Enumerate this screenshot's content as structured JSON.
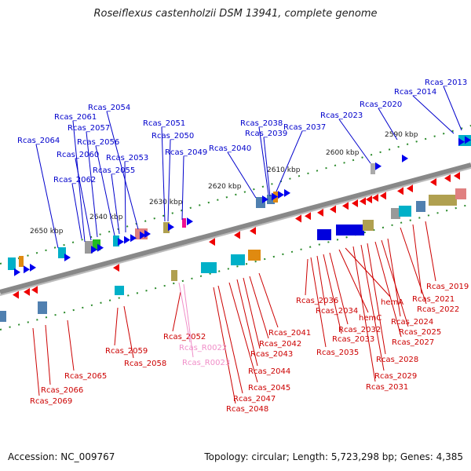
{
  "title": "Roseiflexus castenholzii DSM 13941, complete genome",
  "accession": "Accession: NC_009767",
  "topology": "Topology: circular; Length: 5,723,298 bp; Genes: 4,385",
  "colors": {
    "forward_label": "#0000cc",
    "reverse_label": "#cc0000",
    "rna_label": "#f08ec8",
    "forward_arrow": "#0000ee",
    "reverse_arrow": "#ee0000",
    "backbone": "#888888",
    "tick": "#2a8a2a"
  },
  "kbp_labels": [
    "2650 kbp",
    "2640 kbp",
    "2630 kbp",
    "2620 kbp",
    "2610 kbp",
    "2600 kbp",
    "2590 kbp"
  ],
  "forward_genes": [
    "Rcas_2064",
    "Rcas_2061",
    "Rcas_2060",
    "Rcas_2062",
    "Rcas_2057",
    "Rcas_2056",
    "Rcas_2055",
    "Rcas_2054",
    "Rcas_2053",
    "Rcas_2051",
    "Rcas_2050",
    "Rcas_2049",
    "Rcas_2040",
    "Rcas_2038",
    "Rcas_2039",
    "Rcas_2037",
    "Rcas_2023",
    "Rcas_2020",
    "Rcas_2014",
    "Rcas_2013"
  ],
  "reverse_genes": [
    "Rcas_2069",
    "Rcas_2066",
    "Rcas_2065",
    "Rcas_2059",
    "Rcas_2058",
    "Rcas_2052",
    "Rcas_2048",
    "Rcas_2047",
    "Rcas_2045",
    "Rcas_2044",
    "Rcas_2043",
    "Rcas_2042",
    "Rcas_2041",
    "Rcas_2036",
    "Rcas_2034",
    "Rcas_2035",
    "Rcas_2033",
    "Rcas_2032",
    "hemC",
    "hemA",
    "Rcas_2031",
    "Rcas_2029",
    "Rcas_2028",
    "Rcas_2027",
    "Rcas_2025",
    "Rcas_2024",
    "Rcas_2022",
    "Rcas_2021",
    "Rcas_2019"
  ],
  "rna_genes": [
    "Rcas_R0022",
    "Rcas_R0023"
  ]
}
